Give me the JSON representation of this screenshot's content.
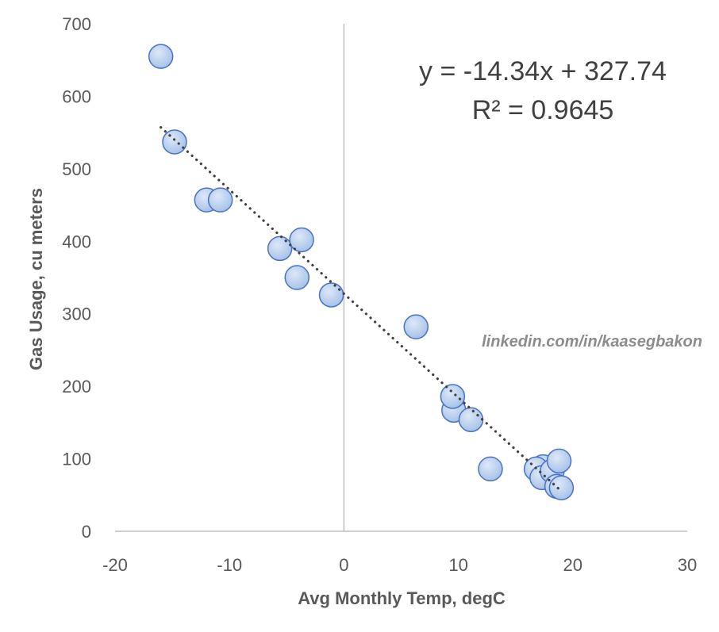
{
  "chart_data": {
    "type": "scatter",
    "title": "",
    "xlabel": "Avg Monthly Temp, degC",
    "ylabel": "Gas Usage, cu meters",
    "xlim": [
      -20,
      30
    ],
    "ylim": [
      0,
      700
    ],
    "x_ticks": [
      "-20",
      "-10",
      "0",
      "10",
      "20",
      "30"
    ],
    "y_ticks": [
      "0",
      "100",
      "200",
      "300",
      "400",
      "500",
      "600",
      "700"
    ],
    "grid": false,
    "legend": "none",
    "series": [
      {
        "points": [
          {
            "x": -16.0,
            "y": 655
          },
          {
            "x": -14.8,
            "y": 537
          },
          {
            "x": -12.0,
            "y": 457
          },
          {
            "x": -10.8,
            "y": 457
          },
          {
            "x": -5.6,
            "y": 390
          },
          {
            "x": -3.7,
            "y": 402
          },
          {
            "x": -4.1,
            "y": 350
          },
          {
            "x": -1.1,
            "y": 326
          },
          {
            "x": 6.3,
            "y": 282
          },
          {
            "x": 9.6,
            "y": 167
          },
          {
            "x": 9.5,
            "y": 186
          },
          {
            "x": 11.1,
            "y": 154
          },
          {
            "x": 12.8,
            "y": 86
          },
          {
            "x": 17.4,
            "y": 89
          },
          {
            "x": 16.8,
            "y": 86
          },
          {
            "x": 17.3,
            "y": 74
          },
          {
            "x": 18.2,
            "y": 83
          },
          {
            "x": 18.8,
            "y": 97
          },
          {
            "x": 18.6,
            "y": 62
          },
          {
            "x": 19.0,
            "y": 60
          }
        ]
      }
    ],
    "trendline": {
      "type": "linear",
      "style": "dotted",
      "slope": -14.34,
      "intercept": 327.74,
      "x_range": [
        -16.0,
        19.0
      ]
    },
    "annotations": {
      "equation": "y = -14.34x + 327.74",
      "r_squared": "R² = 0.9645",
      "credit": "linkedin.com/in/kaasegbakon"
    },
    "colors": {
      "marker_fill_light": "#dde8f8",
      "marker_fill_dark": "#9fbde6",
      "marker_stroke": "#4a72c4",
      "trendline": "#404040",
      "axis": "#bfbfbf"
    }
  }
}
